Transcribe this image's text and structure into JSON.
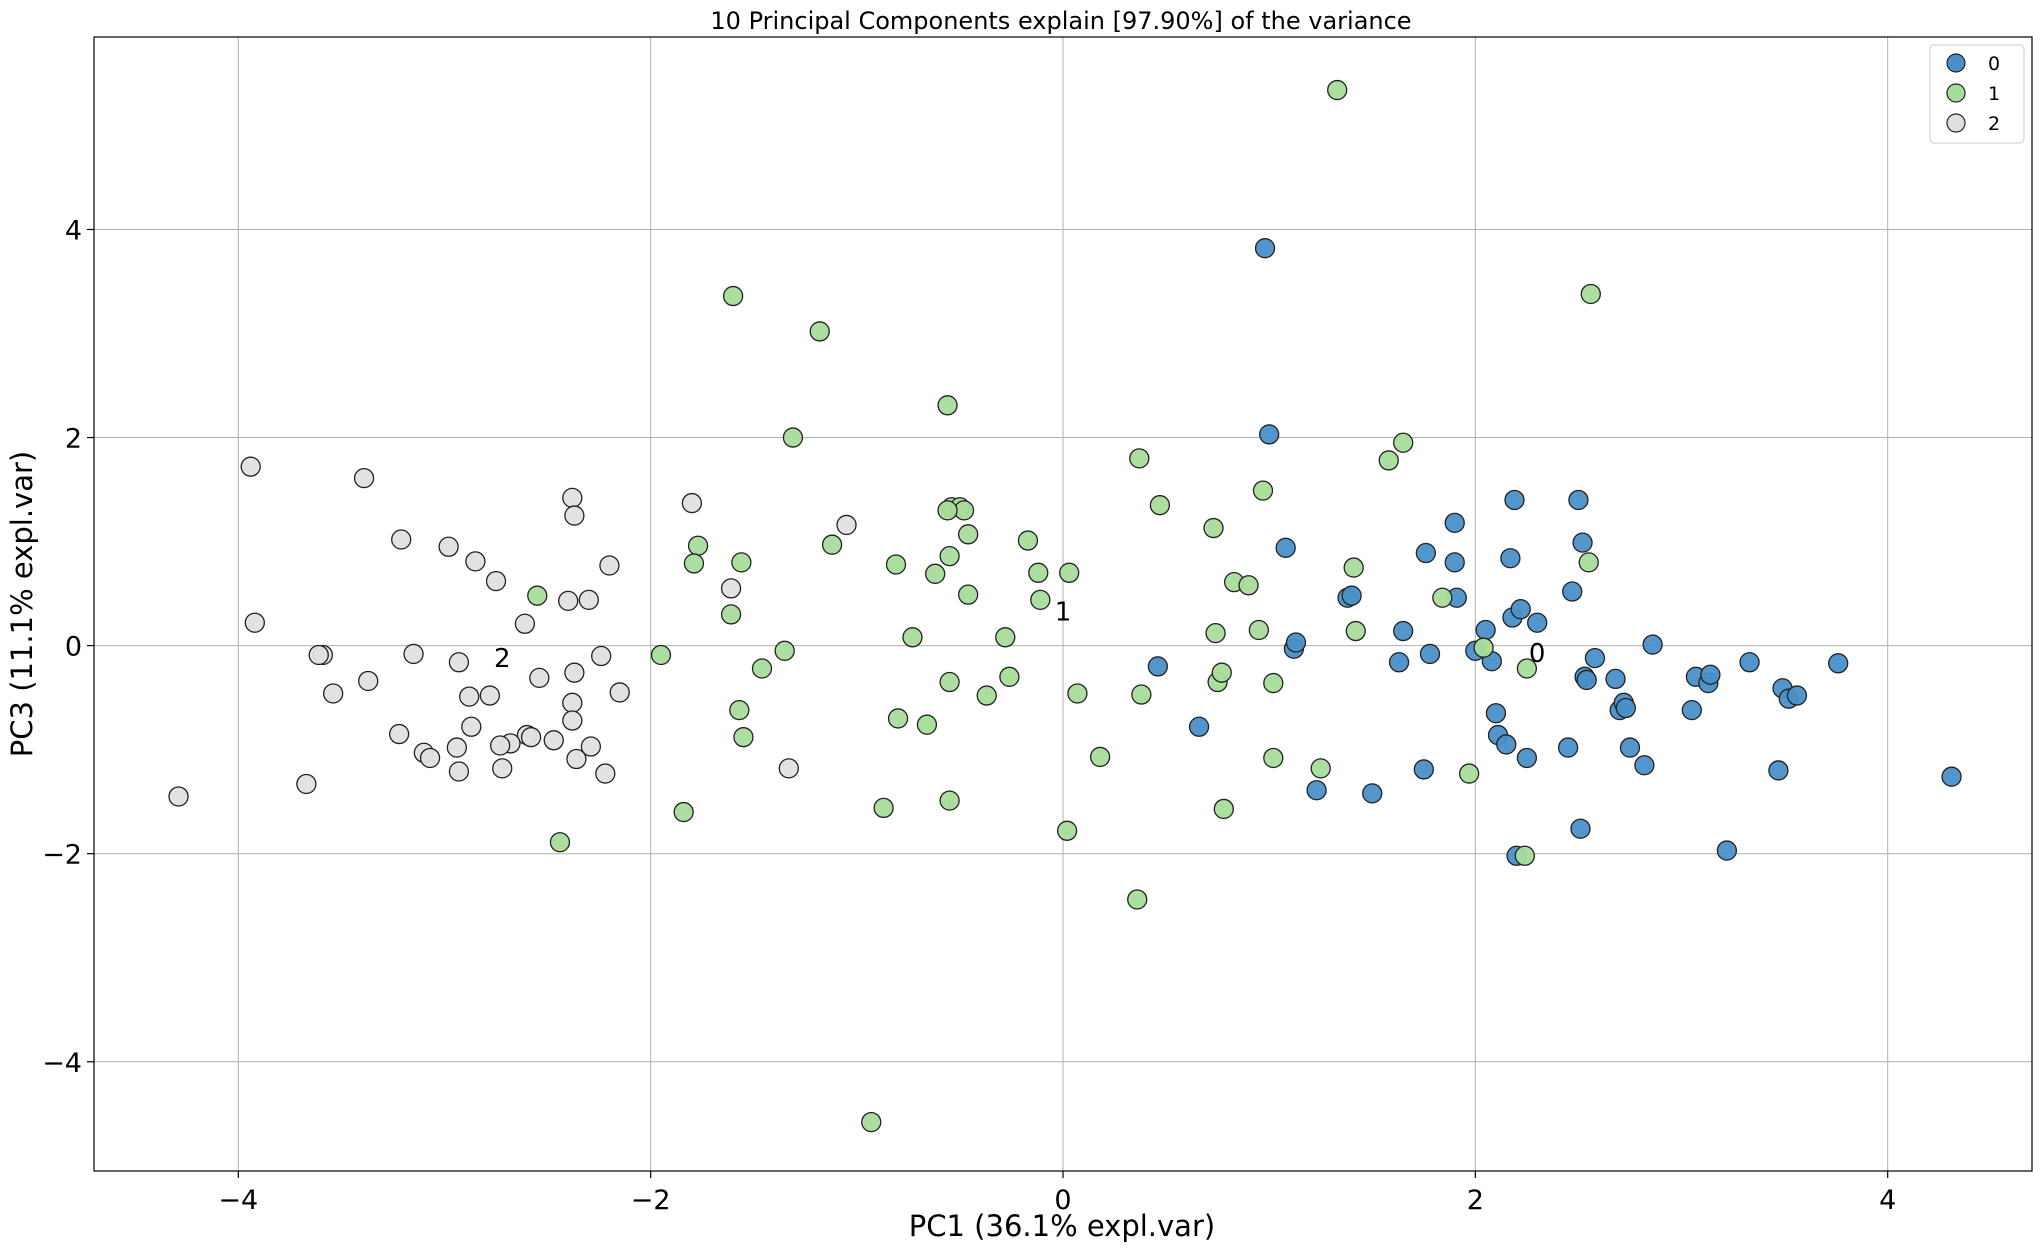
{
  "chart_data": {
    "type": "scatter",
    "title": "10 Principal Components explain [97.90%] of the variance",
    "xlabel": "PC1 (36.1% expl.var)",
    "ylabel": "PC3 (11.1% expl.var)",
    "xlim": [
      -4.7,
      4.7
    ],
    "ylim": [
      -5.05,
      5.85
    ],
    "xticks": [
      -4,
      -2,
      0,
      2,
      4
    ],
    "xtick_labels": [
      "−4",
      "−2",
      "0",
      "2",
      "4"
    ],
    "yticks": [
      -4,
      -2,
      0,
      2,
      4
    ],
    "ytick_labels": [
      "−4",
      "−2",
      "0",
      "2",
      "4"
    ],
    "grid": true,
    "legend_position": "top-right",
    "series": [
      {
        "name": "0",
        "color": "#4a90c8",
        "points": [
          [
            0.98,
            3.82
          ],
          [
            1.0,
            2.03
          ],
          [
            1.08,
            0.94
          ],
          [
            1.12,
            -0.03
          ],
          [
            1.13,
            0.03
          ],
          [
            1.38,
            0.46
          ],
          [
            1.4,
            0.48
          ],
          [
            1.65,
            0.14
          ],
          [
            1.63,
            -0.16
          ],
          [
            1.76,
            0.89
          ],
          [
            1.78,
            -0.08
          ],
          [
            1.75,
            -1.19
          ],
          [
            1.9,
            1.18
          ],
          [
            1.9,
            0.8
          ],
          [
            1.91,
            0.46
          ],
          [
            2.0,
            -0.05
          ],
          [
            2.05,
            0.15
          ],
          [
            2.08,
            -0.15
          ],
          [
            2.1,
            -0.65
          ],
          [
            2.11,
            -0.86
          ],
          [
            2.15,
            -0.95
          ],
          [
            2.17,
            0.84
          ],
          [
            2.18,
            0.27
          ],
          [
            2.19,
            1.4
          ],
          [
            2.22,
            0.35
          ],
          [
            2.3,
            0.22
          ],
          [
            2.2,
            -2.02
          ],
          [
            2.25,
            -1.08
          ],
          [
            2.45,
            -0.98
          ],
          [
            2.47,
            0.52
          ],
          [
            2.5,
            1.4
          ],
          [
            2.52,
            0.99
          ],
          [
            2.53,
            -0.3
          ],
          [
            2.54,
            -0.33
          ],
          [
            2.58,
            -0.12
          ],
          [
            2.51,
            -1.76
          ],
          [
            2.68,
            -0.32
          ],
          [
            2.7,
            -0.62
          ],
          [
            2.72,
            -0.55
          ],
          [
            2.73,
            -0.6
          ],
          [
            2.75,
            -0.98
          ],
          [
            2.82,
            -1.15
          ],
          [
            2.86,
            0.01
          ],
          [
            3.05,
            -0.62
          ],
          [
            3.07,
            -0.3
          ],
          [
            3.13,
            -0.36
          ],
          [
            3.14,
            -0.28
          ],
          [
            3.22,
            -1.97
          ],
          [
            3.33,
            -0.16
          ],
          [
            3.47,
            -1.2
          ],
          [
            3.49,
            -0.41
          ],
          [
            3.52,
            -0.51
          ],
          [
            3.56,
            -0.48
          ],
          [
            3.76,
            -0.17
          ],
          [
            0.66,
            -0.78
          ],
          [
            0.46,
            -0.2
          ],
          [
            1.23,
            -1.39
          ],
          [
            1.5,
            -1.42
          ],
          [
            4.31,
            -1.26
          ]
        ]
      },
      {
        "name": "1",
        "color": "#a8dc9b",
        "points": [
          [
            1.33,
            5.34
          ],
          [
            2.56,
            3.38
          ],
          [
            -1.6,
            3.36
          ],
          [
            -1.18,
            3.02
          ],
          [
            -0.56,
            2.31
          ],
          [
            -1.31,
            2.0
          ],
          [
            1.65,
            1.95
          ],
          [
            1.58,
            1.78
          ],
          [
            0.37,
            1.8
          ],
          [
            0.97,
            1.49
          ],
          [
            0.47,
            1.35
          ],
          [
            -0.54,
            1.33
          ],
          [
            -0.5,
            1.33
          ],
          [
            -0.48,
            1.3
          ],
          [
            -0.56,
            1.3
          ],
          [
            0.73,
            1.13
          ],
          [
            -0.46,
            1.07
          ],
          [
            -0.17,
            1.01
          ],
          [
            -1.12,
            0.97
          ],
          [
            -1.77,
            0.96
          ],
          [
            -0.55,
            0.86
          ],
          [
            -1.56,
            0.8
          ],
          [
            -1.79,
            0.79
          ],
          [
            -0.81,
            0.78
          ],
          [
            1.41,
            0.75
          ],
          [
            2.55,
            0.8
          ],
          [
            -0.62,
            0.69
          ],
          [
            -0.12,
            0.7
          ],
          [
            0.03,
            0.7
          ],
          [
            0.83,
            0.61
          ],
          [
            0.9,
            0.58
          ],
          [
            -0.46,
            0.49
          ],
          [
            -0.11,
            0.44
          ],
          [
            1.84,
            0.46
          ],
          [
            -1.61,
            0.3
          ],
          [
            1.42,
            0.14
          ],
          [
            0.74,
            0.12
          ],
          [
            0.95,
            0.15
          ],
          [
            -0.73,
            0.08
          ],
          [
            -0.28,
            0.08
          ],
          [
            -1.35,
            -0.05
          ],
          [
            2.04,
            -0.02
          ],
          [
            -1.95,
            -0.09
          ],
          [
            -1.46,
            -0.22
          ],
          [
            2.25,
            -0.22
          ],
          [
            -0.55,
            -0.35
          ],
          [
            -0.26,
            -0.3
          ],
          [
            0.75,
            -0.35
          ],
          [
            1.02,
            -0.36
          ],
          [
            0.77,
            -0.26
          ],
          [
            -0.37,
            -0.48
          ],
          [
            0.07,
            -0.46
          ],
          [
            0.38,
            -0.47
          ],
          [
            -1.57,
            -0.62
          ],
          [
            -0.8,
            -0.7
          ],
          [
            -0.66,
            -0.76
          ],
          [
            -1.55,
            -0.88
          ],
          [
            0.18,
            -1.07
          ],
          [
            1.02,
            -1.08
          ],
          [
            1.25,
            -1.18
          ],
          [
            1.97,
            -1.23
          ],
          [
            -0.55,
            -1.49
          ],
          [
            0.78,
            -1.57
          ],
          [
            -0.87,
            -1.56
          ],
          [
            -1.84,
            -1.6
          ],
          [
            -2.44,
            -1.89
          ],
          [
            0.02,
            -1.78
          ],
          [
            2.24,
            -2.02
          ],
          [
            0.36,
            -2.44
          ],
          [
            -0.93,
            -4.58
          ],
          [
            -2.55,
            0.48
          ]
        ]
      },
      {
        "name": "2",
        "color": "#e0e0e0",
        "points": [
          [
            -3.94,
            1.72
          ],
          [
            -3.39,
            1.61
          ],
          [
            -2.38,
            1.42
          ],
          [
            -2.37,
            1.25
          ],
          [
            -1.8,
            1.37
          ],
          [
            -1.05,
            1.16
          ],
          [
            -3.21,
            1.02
          ],
          [
            -2.98,
            0.95
          ],
          [
            -2.85,
            0.81
          ],
          [
            -2.2,
            0.77
          ],
          [
            -2.75,
            0.62
          ],
          [
            -1.61,
            0.55
          ],
          [
            -2.4,
            0.43
          ],
          [
            -2.3,
            0.44
          ],
          [
            -3.92,
            0.22
          ],
          [
            -2.61,
            0.21
          ],
          [
            -3.59,
            -0.09
          ],
          [
            -3.61,
            -0.09
          ],
          [
            -3.15,
            -0.08
          ],
          [
            -2.93,
            -0.16
          ],
          [
            -2.24,
            -0.1
          ],
          [
            -2.37,
            -0.26
          ],
          [
            -3.37,
            -0.34
          ],
          [
            -2.54,
            -0.31
          ],
          [
            -3.54,
            -0.46
          ],
          [
            -2.88,
            -0.49
          ],
          [
            -2.78,
            -0.48
          ],
          [
            -2.15,
            -0.45
          ],
          [
            -2.38,
            -0.55
          ],
          [
            -2.38,
            -0.72
          ],
          [
            -2.87,
            -0.78
          ],
          [
            -3.22,
            -0.85
          ],
          [
            -2.6,
            -0.86
          ],
          [
            -2.58,
            -0.88
          ],
          [
            -2.47,
            -0.91
          ],
          [
            -2.68,
            -0.94
          ],
          [
            -2.73,
            -0.96
          ],
          [
            -2.94,
            -0.98
          ],
          [
            -2.29,
            -0.97
          ],
          [
            -3.1,
            -1.03
          ],
          [
            -3.07,
            -1.08
          ],
          [
            -2.36,
            -1.09
          ],
          [
            -2.72,
            -1.18
          ],
          [
            -2.93,
            -1.21
          ],
          [
            -2.22,
            -1.23
          ],
          [
            -3.67,
            -1.33
          ],
          [
            -1.33,
            -1.18
          ],
          [
            -4.29,
            -1.45
          ]
        ]
      }
    ],
    "centroid_labels": [
      {
        "text": "2",
        "x": -2.72,
        "y": -0.12
      },
      {
        "text": "1",
        "x": 0.0,
        "y": 0.33
      },
      {
        "text": "0",
        "x": 2.3,
        "y": -0.07
      }
    ]
  }
}
